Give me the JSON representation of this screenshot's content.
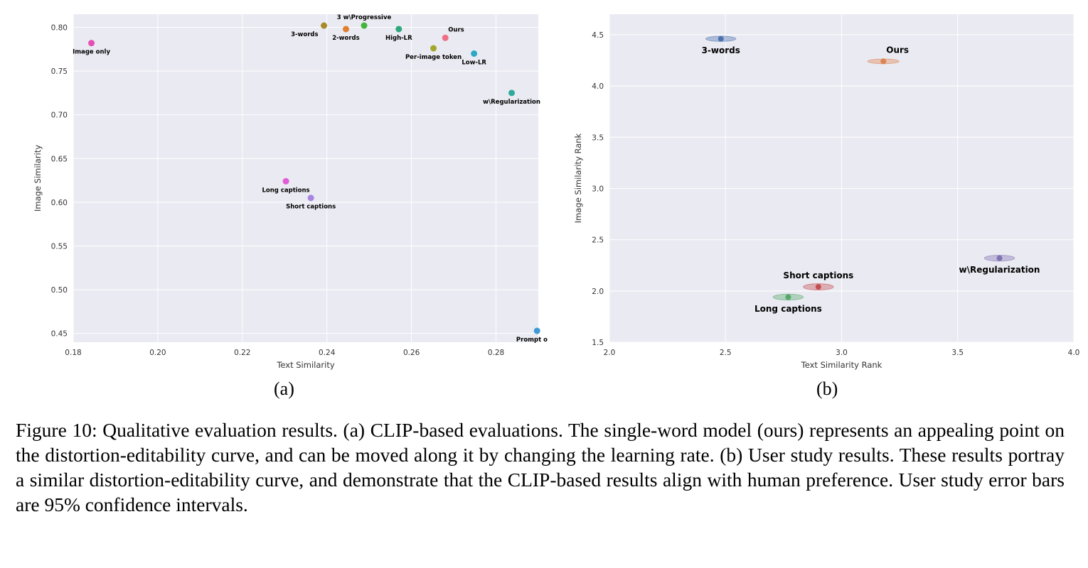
{
  "chart_data": [
    {
      "type": "scatter",
      "panel": "(a)",
      "xlabel": "Text Similarity",
      "ylabel": "Image Similarity",
      "xlim": [
        0.18,
        0.29
      ],
      "ylim": [
        0.44,
        0.815
      ],
      "xticks": [
        "0.18",
        "0.20",
        "0.22",
        "0.24",
        "0.26",
        "0.28"
      ],
      "yticks": [
        "0.45",
        "0.50",
        "0.55",
        "0.60",
        "0.65",
        "0.70",
        "0.75",
        "0.80"
      ],
      "grid": true,
      "points": [
        {
          "label": "Image only",
          "x": 0.1843,
          "y": 0.782,
          "color": "#e54fb5",
          "label_pos": "below"
        },
        {
          "label": "3-words",
          "x": 0.2393,
          "y": 0.802,
          "color": "#a88a2a",
          "label_pos": "below-left"
        },
        {
          "label": "3 w\\Progressive",
          "x": 0.2488,
          "y": 0.802,
          "color": "#44b43c",
          "label_pos": "above"
        },
        {
          "label": "2-words",
          "x": 0.2445,
          "y": 0.798,
          "color": "#e07f30",
          "label_pos": "below"
        },
        {
          "label": "High-LR",
          "x": 0.257,
          "y": 0.798,
          "color": "#2ca87d",
          "label_pos": "below"
        },
        {
          "label": "Ours",
          "x": 0.268,
          "y": 0.788,
          "color": "#ef6f85",
          "label_pos": "above-right"
        },
        {
          "label": "Per-image token",
          "x": 0.2652,
          "y": 0.776,
          "color": "#a3a82c",
          "label_pos": "below"
        },
        {
          "label": "Low-LR",
          "x": 0.2748,
          "y": 0.77,
          "color": "#2ca7c7",
          "label_pos": "below"
        },
        {
          "label": "w\\Regularization",
          "x": 0.2837,
          "y": 0.725,
          "color": "#2eaa9c",
          "label_pos": "below"
        },
        {
          "label": "Long captions",
          "x": 0.2303,
          "y": 0.624,
          "color": "#e15cd8",
          "label_pos": "below"
        },
        {
          "label": "Short captions",
          "x": 0.2362,
          "y": 0.605,
          "color": "#a785e3",
          "label_pos": "below"
        },
        {
          "label": "Prompt only",
          "x": 0.2897,
          "y": 0.453,
          "color": "#3b9ad6",
          "label_pos": "below"
        }
      ]
    },
    {
      "type": "scatter",
      "panel": "(b)",
      "xlabel": "Text Similarity Rank",
      "ylabel": "Image Similarity Rank",
      "xlim": [
        2.0,
        4.0
      ],
      "ylim": [
        1.5,
        4.7
      ],
      "xticks": [
        "2.0",
        "2.5",
        "3.0",
        "3.5",
        "4.0"
      ],
      "yticks": [
        "1.5",
        "2.0",
        "2.5",
        "3.0",
        "3.5",
        "4.0",
        "4.5"
      ],
      "grid": true,
      "error_bars": "95% confidence intervals (ellipses)",
      "points": [
        {
          "label": "3-words",
          "x": 2.48,
          "y": 4.46,
          "color": "#4c72b0",
          "rx": 0.065,
          "ry": 0.065,
          "label_pos": "below"
        },
        {
          "label": "Ours",
          "x": 3.18,
          "y": 4.24,
          "color": "#dd8452",
          "rx": 0.068,
          "ry": 0.06,
          "label_pos": "above-right"
        },
        {
          "label": "w\\Regularization",
          "x": 3.68,
          "y": 2.32,
          "color": "#8172b3",
          "rx": 0.065,
          "ry": 0.075,
          "label_pos": "below"
        },
        {
          "label": "Short captions",
          "x": 2.9,
          "y": 2.04,
          "color": "#c44e52",
          "rx": 0.065,
          "ry": 0.08,
          "label_pos": "above"
        },
        {
          "label": "Long captions",
          "x": 2.77,
          "y": 1.94,
          "color": "#55a868",
          "rx": 0.065,
          "ry": 0.075,
          "label_pos": "below"
        }
      ]
    }
  ],
  "figure": {
    "subcaption_a": "(a)",
    "subcaption_b": "(b)",
    "caption": "Figure 10: Qualitative evaluation results. (a) CLIP-based evaluations. The single-word model (ours) represents an appealing point on the distortion-editability curve, and can be moved along it by changing the learning rate. (b) User study results. These results portray a similar distortion-editability curve, and demonstrate that the CLIP-based results align with human preference. User study error bars are 95% confidence intervals."
  }
}
